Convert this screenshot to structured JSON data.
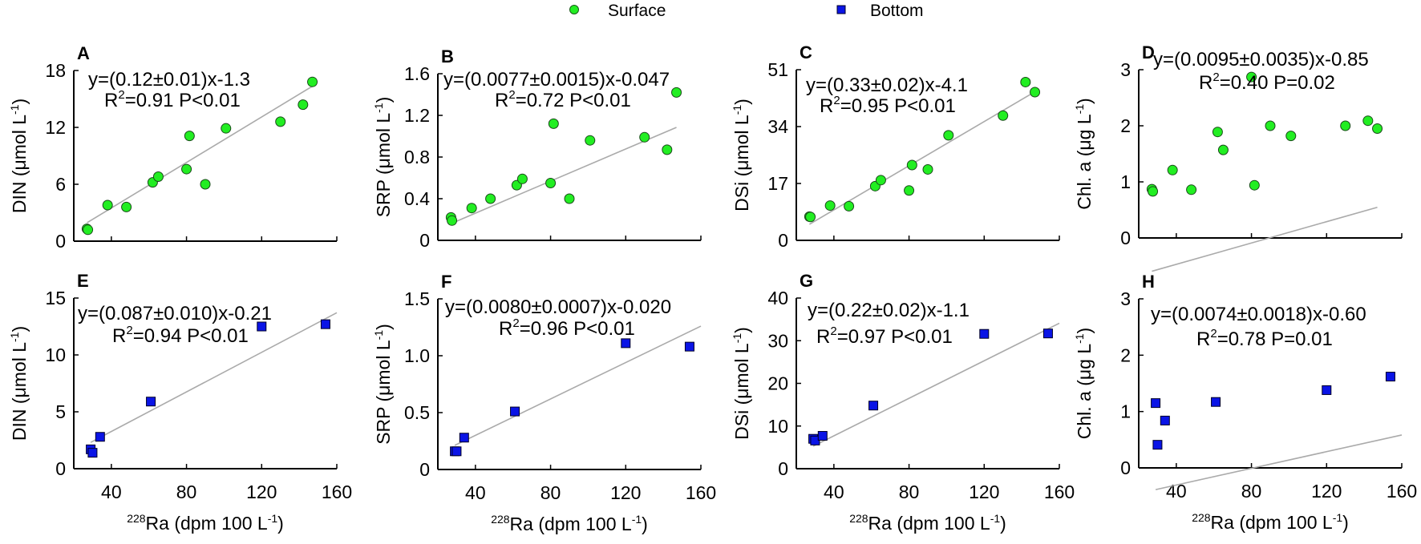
{
  "chart_data": {
    "type": "scatter",
    "legend": {
      "placement": "top-center",
      "items": [
        {
          "name": "Surface",
          "marker": "circle",
          "color": "#22ee22"
        },
        {
          "name": "Bottom",
          "marker": "square",
          "color": "#0a14e6"
        }
      ]
    },
    "xlabel": {
      "sup": "228",
      "main": "Ra (dpm 100 L",
      "sup2": "-1",
      "end": ")"
    },
    "xlim": [
      20,
      160
    ],
    "xticks": [
      "40",
      "80",
      "120",
      "160"
    ],
    "x_surface": [
      27,
      27.5,
      38,
      48,
      62,
      65,
      80,
      81.6,
      90,
      101,
      130,
      142,
      147
    ],
    "x_bottom": [
      29,
      30,
      34,
      61,
      120,
      154
    ],
    "panels": [
      {
        "label": "A",
        "series": "Surface",
        "ylabel": {
          "main": "DIN (μmol L",
          "sup": "-1",
          "end": ")"
        },
        "ylim": [
          0,
          18
        ],
        "yticks": [
          "0",
          "6",
          "12",
          "18"
        ],
        "y": [
          1.3,
          1.2,
          3.8,
          3.6,
          6.2,
          6.8,
          7.6,
          11.1,
          6.0,
          11.9,
          12.6,
          14.4,
          16.8
        ],
        "equation": "y=(0.12±0.01)x-1.3",
        "slope": 0.12,
        "intercept": -1.3,
        "r2": "=0.91 P<0.01"
      },
      {
        "label": "B",
        "series": "Surface",
        "ylabel": {
          "main": "SRP (μmol L",
          "sup": "-1",
          "end": ")"
        },
        "ylim": [
          0,
          1.6
        ],
        "yticks": [
          "0",
          "0.4",
          "0.8",
          "1.2",
          "1.6"
        ],
        "y": [
          0.22,
          0.19,
          0.31,
          0.4,
          0.53,
          0.59,
          0.55,
          1.12,
          0.4,
          0.96,
          0.99,
          0.87,
          1.42
        ],
        "equation": "y=(0.0077±0.0015)x-0.047",
        "slope": 0.0077,
        "intercept": -0.047,
        "r2": "=0.72 P<0.01"
      },
      {
        "label": "C",
        "series": "Surface",
        "ylabel": {
          "main": "DSi (μmol L",
          "sup": "-1",
          "end": ")"
        },
        "ylim": [
          0,
          51
        ],
        "yticks": [
          "0",
          "17",
          "34",
          "51"
        ],
        "y": [
          7.1,
          7.0,
          10.4,
          10.2,
          16.2,
          18.0,
          14.9,
          22.5,
          21.2,
          31.4,
          37.3,
          47.3,
          44.3
        ],
        "equation": "y=(0.33±0.02)x-4.1",
        "slope": 0.33,
        "intercept": -4.1,
        "r2": "=0.95 P<0.01"
      },
      {
        "label": "D",
        "series": "Surface",
        "ylabel": {
          "main": "Chl. a (μg L",
          "sup": "-1",
          "end": ")"
        },
        "ylim": [
          0,
          3
        ],
        "yticks": [
          "0",
          "1",
          "2",
          "3"
        ],
        "y": [
          0.87,
          0.83,
          1.21,
          0.86,
          1.89,
          1.57,
          2.87,
          0.94,
          2.0,
          1.82,
          2.0,
          2.09,
          1.95
        ],
        "equation": "y=(0.0095±0.0035)x-0.85",
        "slope": 0.0095,
        "intercept": -0.85,
        "r2": "=0.40 P=0.02"
      },
      {
        "label": "E",
        "series": "Bottom",
        "ylabel": {
          "main": "DIN (μmol L",
          "sup": "-1",
          "end": ")"
        },
        "ylim": [
          0,
          15
        ],
        "yticks": [
          "0",
          "5",
          "10",
          "15"
        ],
        "y": [
          1.7,
          1.4,
          2.8,
          5.9,
          12.5,
          12.7
        ],
        "equation": "y=(0.087±0.010)x-0.21",
        "slope": 0.087,
        "intercept": -0.21,
        "r2": "=0.94 P<0.01"
      },
      {
        "label": "F",
        "series": "Bottom",
        "ylabel": {
          "main": "SRP (μmol L",
          "sup": "-1",
          "end": ")"
        },
        "ylim": [
          0,
          1.5
        ],
        "yticks": [
          "0",
          "0.5",
          "1.0",
          "1.5"
        ],
        "y": [
          0.16,
          0.16,
          0.28,
          0.51,
          1.11,
          1.08
        ],
        "equation": "y=(0.0080±0.0007)x-0.020",
        "slope": 0.008,
        "intercept": -0.02,
        "r2": "=0.96 P<0.01"
      },
      {
        "label": "G",
        "series": "Bottom",
        "ylabel": {
          "main": "DSi (μmol L",
          "sup": "-1",
          "end": ")"
        },
        "ylim": [
          0,
          40
        ],
        "yticks": [
          "0",
          "10",
          "20",
          "30",
          "40"
        ],
        "y": [
          7.0,
          6.6,
          7.7,
          14.8,
          31.6,
          31.7
        ],
        "equation": "y=(0.22±0.02)x-1.1",
        "slope": 0.22,
        "intercept": -1.1,
        "r2": "=0.97 P<0.01"
      },
      {
        "label": "H",
        "series": "Bottom",
        "ylabel": {
          "main": "Chl. a (μg L",
          "sup": "-1",
          "end": ")"
        },
        "ylim": [
          0,
          3
        ],
        "yticks": [
          "0",
          "1",
          "2",
          "3"
        ],
        "y": [
          1.15,
          0.41,
          0.84,
          1.17,
          1.38,
          1.62
        ],
        "equation": "y=(0.0074±0.0018)x-0.60",
        "slope": 0.0074,
        "intercept": -0.6,
        "r2": "=0.78 P=0.01"
      }
    ]
  }
}
